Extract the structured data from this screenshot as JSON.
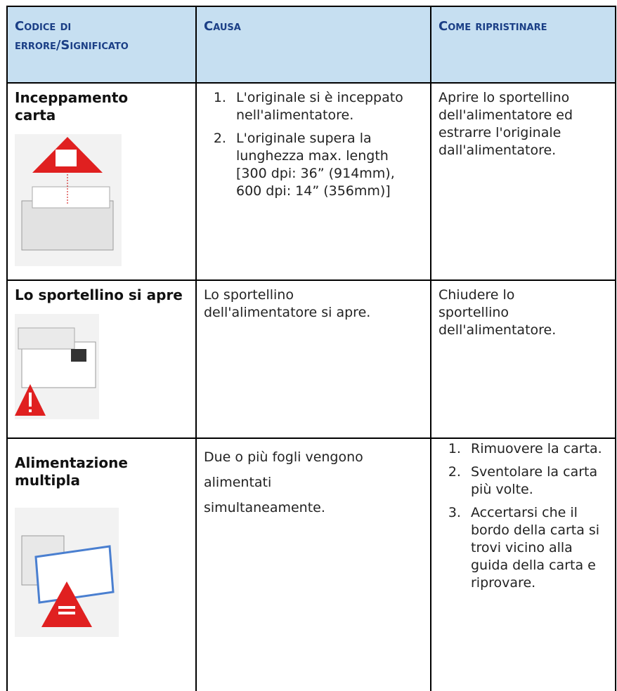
{
  "table": {
    "header": [
      "Codice di errore/Significato",
      "Causa",
      "Come ripristinare"
    ],
    "rows": [
      {
        "code": "Inceppamento carta",
        "cause": [
          "L'originale si è inceppato nell'alimentatore.",
          "L'originale supera la lunghezza max. length [300 dpi: 36” (914mm), 600 dpi: 14” (356mm)]"
        ],
        "remedy": "Aprire lo sportellino dell'alimentatore ed estrarre l'originale dall'alimentatore."
      },
      {
        "code": "Lo sportellino si apre",
        "cause": "Lo sportellino dell'alimentatore si apre.",
        "remedy": "Chiudere lo sportellino dell'alimentatore."
      },
      {
        "code": "Alimentazione multipla",
        "cause": "Due o più fogli vengono alimentati simultaneamente.",
        "remedy": [
          "Rimuovere la carta.",
          "Sventolare la carta più volte.",
          "Accertarsi che il bordo della carta si trovi vicino alla guida della carta e riprovare."
        ]
      }
    ]
  }
}
